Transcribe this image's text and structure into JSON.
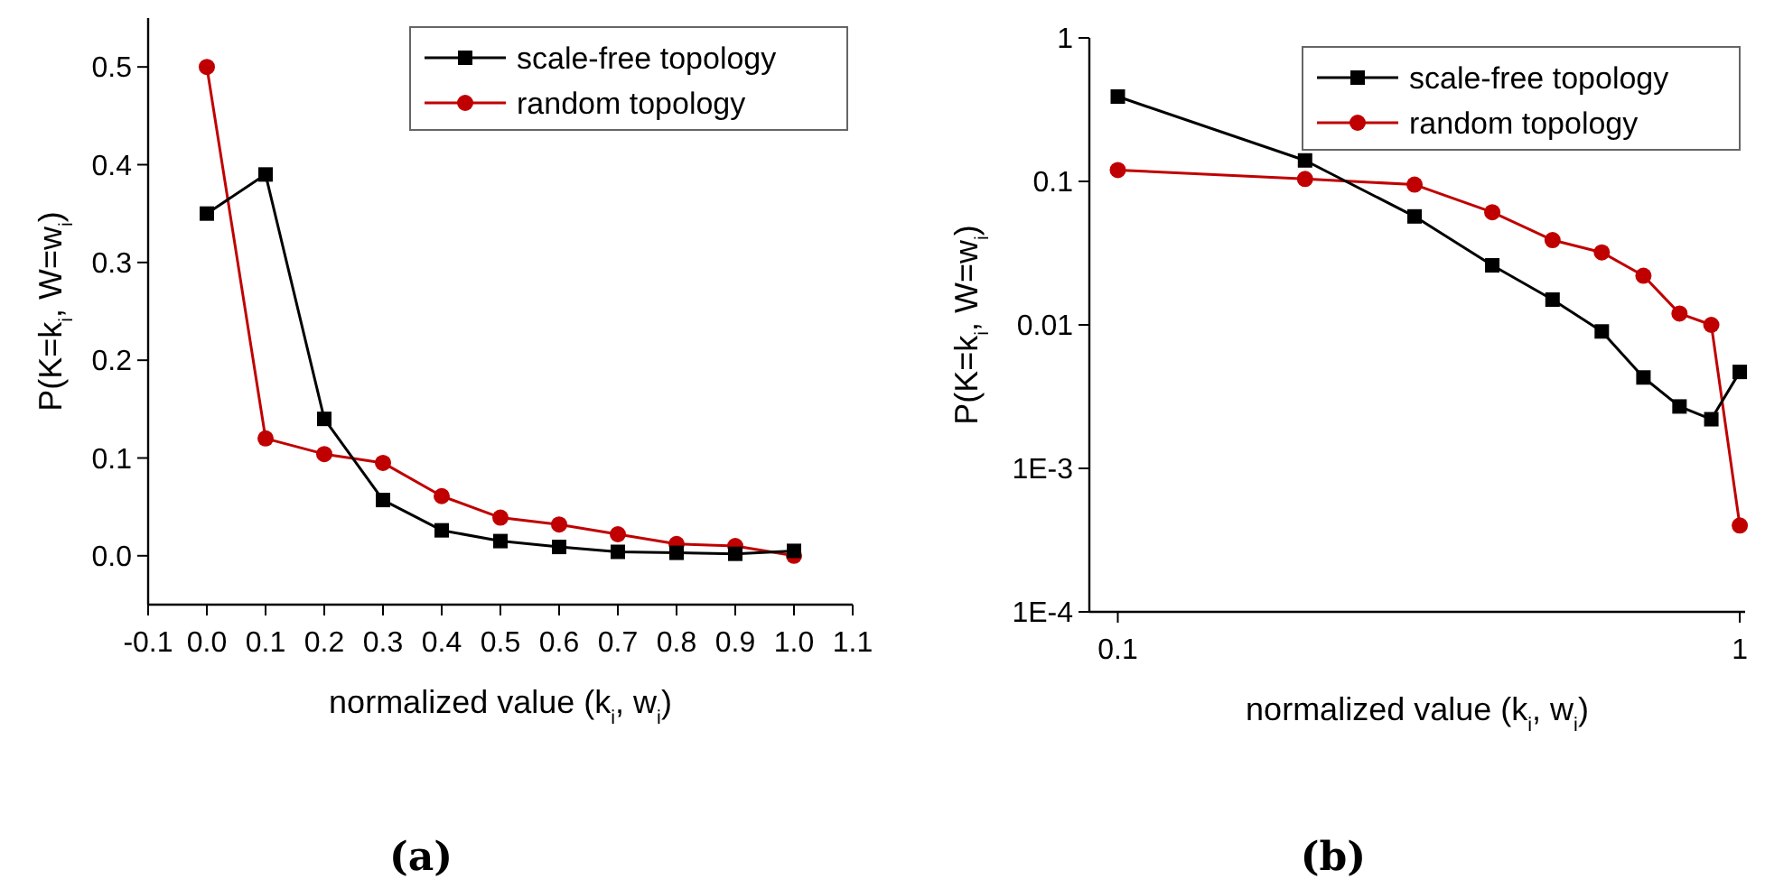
{
  "chart_data": [
    {
      "type": "line",
      "xlabel": "normalized value (k$_{i}$, w$_{i}$)",
      "ylabel": "P(K=k$_{i}$, W=w$_{i}$)",
      "annotations": [
        "(a)"
      ],
      "x": [
        0,
        0.1,
        0.2,
        0.3,
        0.4,
        0.5,
        0.6,
        0.7,
        0.8,
        0.9,
        1.0
      ],
      "xlim": [
        -0.1,
        1.1
      ],
      "xticks": [
        {
          "value": -0.1,
          "label": "-0.1"
        },
        {
          "value": 0,
          "label": "0.0"
        },
        0.1,
        0.2,
        0.3,
        0.4,
        0.5,
        0.6,
        0.7,
        0.8,
        0.9,
        {
          "value": 1,
          "label": "1.0"
        },
        1.1
      ],
      "ylim": [
        -0.05,
        0.55
      ],
      "yticks": [
        {
          "value": 0,
          "label": "0.0"
        },
        0.1,
        0.2,
        0.3,
        0.4,
        0.5
      ],
      "legend": "top right",
      "grid": false,
      "series": [
        {
          "name": "scale-free topology",
          "color": "#000000",
          "marker": "square",
          "values": [
            0.35,
            0.39,
            0.14,
            0.057,
            0.026,
            0.015,
            0.009,
            0.004,
            0.003,
            0.002,
            0.005
          ]
        },
        {
          "name": "random topology",
          "color": "#c00000",
          "marker": "circle",
          "values": [
            0.5,
            0.12,
            0.104,
            0.095,
            0.061,
            0.039,
            0.032,
            0.022,
            0.012,
            0.01,
            0
          ]
        }
      ]
    },
    {
      "type": "line",
      "xlabel": "normalized value (k$_{i}$, w$_{i}$)",
      "ylabel": "P(K=k$_{i}$, W=w$_{i}$)",
      "annotations": [
        "(b)"
      ],
      "x": [
        0.1,
        0.2,
        0.3,
        0.4,
        0.5,
        0.6,
        0.7,
        0.8,
        0.9,
        1.0
      ],
      "log": "xy",
      "xlim": [
        0.09,
        1.02
      ],
      "xticks": [
        0.1,
        1
      ],
      "ylim": [
        0.0001,
        1
      ],
      "yticks": [
        {
          "value": 0.0001,
          "label": "1E-4"
        },
        {
          "value": 0.001,
          "label": "1E-3"
        },
        0.01,
        0.1,
        1
      ],
      "legend": "top right",
      "grid": false,
      "series": [
        {
          "name": "scale-free topology",
          "color": "#000000",
          "marker": "square",
          "values": [
            0.39,
            0.14,
            0.057,
            0.026,
            0.015,
            0.009,
            0.0043,
            0.0027,
            0.0022,
            0.0047
          ]
        },
        {
          "name": "random topology",
          "color": "#c00000",
          "marker": "circle",
          "values": [
            0.12,
            0.104,
            0.095,
            0.061,
            0.039,
            0.032,
            0.022,
            0.012,
            0.01,
            0.0004
          ]
        }
      ]
    }
  ]
}
